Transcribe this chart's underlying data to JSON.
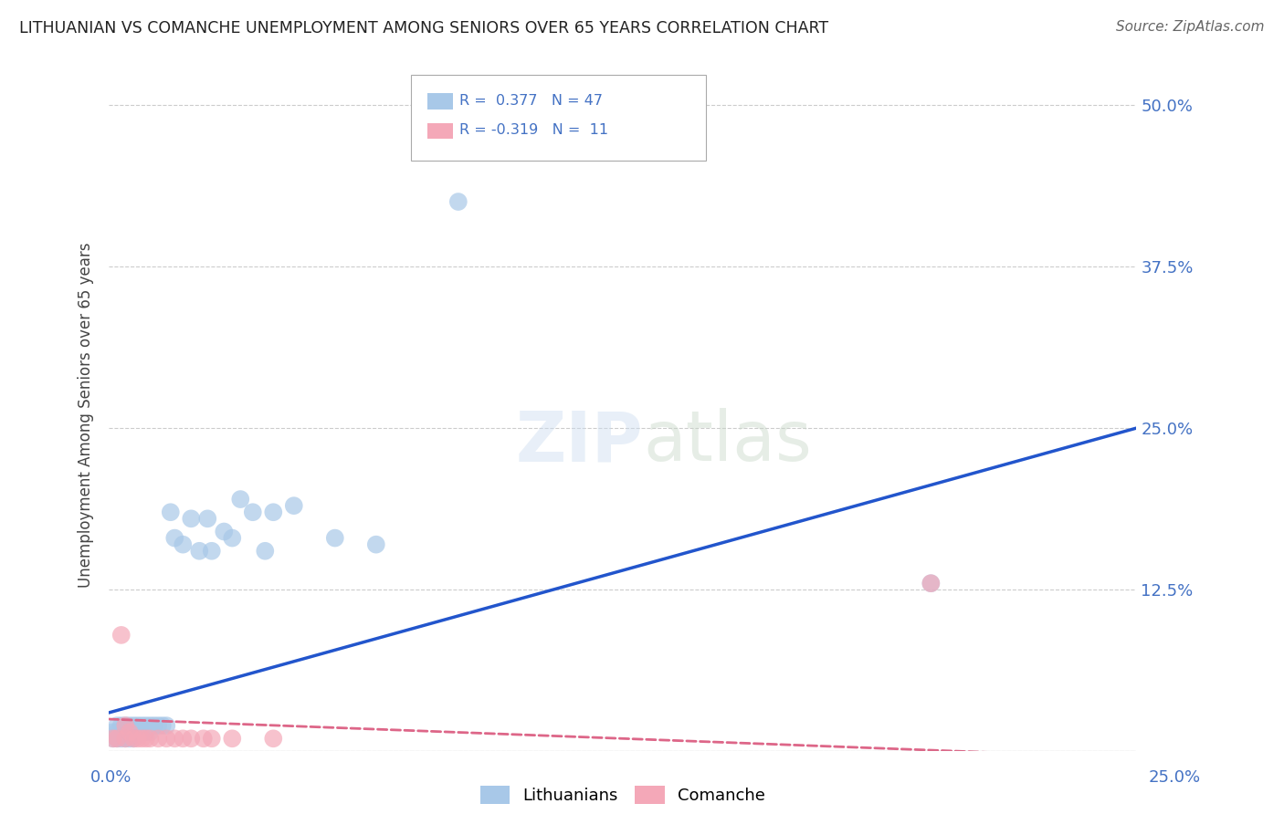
{
  "title": "LITHUANIAN VS COMANCHE UNEMPLOYMENT AMONG SENIORS OVER 65 YEARS CORRELATION CHART",
  "source": "Source: ZipAtlas.com",
  "ylabel": "Unemployment Among Seniors over 65 years",
  "yticks": [
    0.0,
    0.125,
    0.25,
    0.375,
    0.5
  ],
  "ytick_labels": [
    "",
    "12.5%",
    "25.0%",
    "37.5%",
    "50.0%"
  ],
  "xlim": [
    0.0,
    0.25
  ],
  "ylim": [
    0.0,
    0.52
  ],
  "lith_color": "#a8c8e8",
  "com_color": "#f4a8b8",
  "lith_line_color": "#2255cc",
  "com_line_color": "#dd6688",
  "background_color": "#ffffff",
  "grid_color": "#cccccc",
  "lith_scatter_x": [
    0.001,
    0.001,
    0.002,
    0.002,
    0.002,
    0.003,
    0.003,
    0.003,
    0.004,
    0.004,
    0.004,
    0.005,
    0.005,
    0.005,
    0.006,
    0.006,
    0.006,
    0.007,
    0.007,
    0.008,
    0.008,
    0.009,
    0.009,
    0.01,
    0.01,
    0.011,
    0.012,
    0.013,
    0.014,
    0.015,
    0.016,
    0.018,
    0.02,
    0.022,
    0.024,
    0.025,
    0.028,
    0.03,
    0.032,
    0.035,
    0.038,
    0.04,
    0.045,
    0.055,
    0.065,
    0.085,
    0.2
  ],
  "lith_scatter_y": [
    0.01,
    0.015,
    0.01,
    0.015,
    0.02,
    0.01,
    0.015,
    0.02,
    0.01,
    0.015,
    0.02,
    0.01,
    0.015,
    0.02,
    0.01,
    0.015,
    0.02,
    0.015,
    0.02,
    0.015,
    0.02,
    0.015,
    0.02,
    0.015,
    0.02,
    0.02,
    0.02,
    0.02,
    0.02,
    0.185,
    0.165,
    0.16,
    0.18,
    0.155,
    0.18,
    0.155,
    0.17,
    0.165,
    0.195,
    0.185,
    0.155,
    0.185,
    0.19,
    0.165,
    0.16,
    0.425,
    0.13
  ],
  "com_scatter_x": [
    0.001,
    0.002,
    0.003,
    0.004,
    0.004,
    0.005,
    0.006,
    0.007,
    0.008,
    0.009,
    0.01,
    0.012,
    0.014,
    0.016,
    0.018,
    0.02,
    0.023,
    0.025,
    0.03,
    0.04,
    0.2
  ],
  "com_scatter_y": [
    0.01,
    0.01,
    0.09,
    0.01,
    0.02,
    0.015,
    0.01,
    0.01,
    0.01,
    0.01,
    0.01,
    0.01,
    0.01,
    0.01,
    0.01,
    0.01,
    0.01,
    0.01,
    0.01,
    0.01,
    0.13
  ],
  "lith_line_x0": 0.0,
  "lith_line_y0": 0.03,
  "lith_line_x1": 0.25,
  "lith_line_y1": 0.25,
  "com_line_x0": 0.0,
  "com_line_y0": 0.025,
  "com_line_x1": 0.25,
  "com_line_y1": -0.005
}
